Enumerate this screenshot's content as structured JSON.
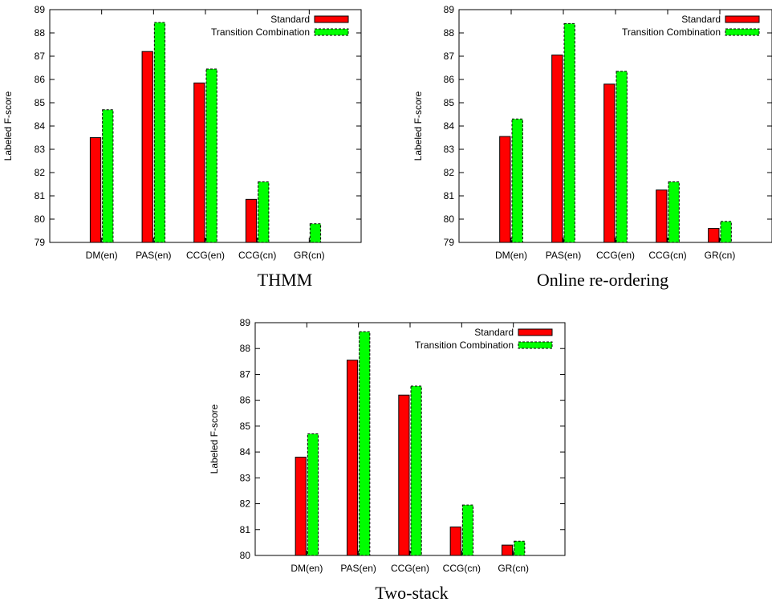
{
  "chart_data": [
    {
      "type": "bar",
      "caption": "THMM",
      "ylabel": "Labeled F-score",
      "ylim": [
        79,
        89
      ],
      "yticks": [
        79,
        80,
        81,
        82,
        83,
        84,
        85,
        86,
        87,
        88,
        89
      ],
      "categories": [
        "DM(en)",
        "PAS(en)",
        "CCG(en)",
        "CCG(cn)",
        "GR(cn)"
      ],
      "series": [
        {
          "name": "Standard",
          "color": "#ff0000",
          "values": [
            83.5,
            87.2,
            85.85,
            80.85,
            79.0
          ]
        },
        {
          "name": "Transition Combination",
          "color": "#00ff00",
          "values": [
            84.7,
            88.45,
            86.45,
            81.6,
            79.8
          ]
        }
      ],
      "legend": "top-right",
      "grid": false
    },
    {
      "type": "bar",
      "caption": "Online re-ordering",
      "ylabel": "Labeled F-score",
      "ylim": [
        79,
        89
      ],
      "yticks": [
        79,
        80,
        81,
        82,
        83,
        84,
        85,
        86,
        87,
        88,
        89
      ],
      "categories": [
        "DM(en)",
        "PAS(en)",
        "CCG(en)",
        "CCG(cn)",
        "GR(cn)"
      ],
      "series": [
        {
          "name": "Standard",
          "color": "#ff0000",
          "values": [
            83.55,
            87.05,
            85.8,
            81.25,
            79.6
          ]
        },
        {
          "name": "Transition Combination",
          "color": "#00ff00",
          "values": [
            84.3,
            88.4,
            86.35,
            81.6,
            79.9
          ]
        }
      ],
      "legend": "top-right",
      "grid": false
    },
    {
      "type": "bar",
      "caption": "Two-stack",
      "ylabel": "Labeled F-score",
      "ylim": [
        80,
        89
      ],
      "yticks": [
        80,
        81,
        82,
        83,
        84,
        85,
        86,
        87,
        88,
        89
      ],
      "categories": [
        "DM(en)",
        "PAS(en)",
        "CCG(en)",
        "CCG(cn)",
        "GR(cn)"
      ],
      "series": [
        {
          "name": "Standard",
          "color": "#ff0000",
          "values": [
            83.8,
            87.55,
            86.2,
            81.1,
            80.4
          ]
        },
        {
          "name": "Transition Combination",
          "color": "#00ff00",
          "values": [
            84.7,
            88.65,
            86.55,
            81.95,
            80.55
          ]
        }
      ],
      "legend": "top-right",
      "grid": false
    }
  ]
}
